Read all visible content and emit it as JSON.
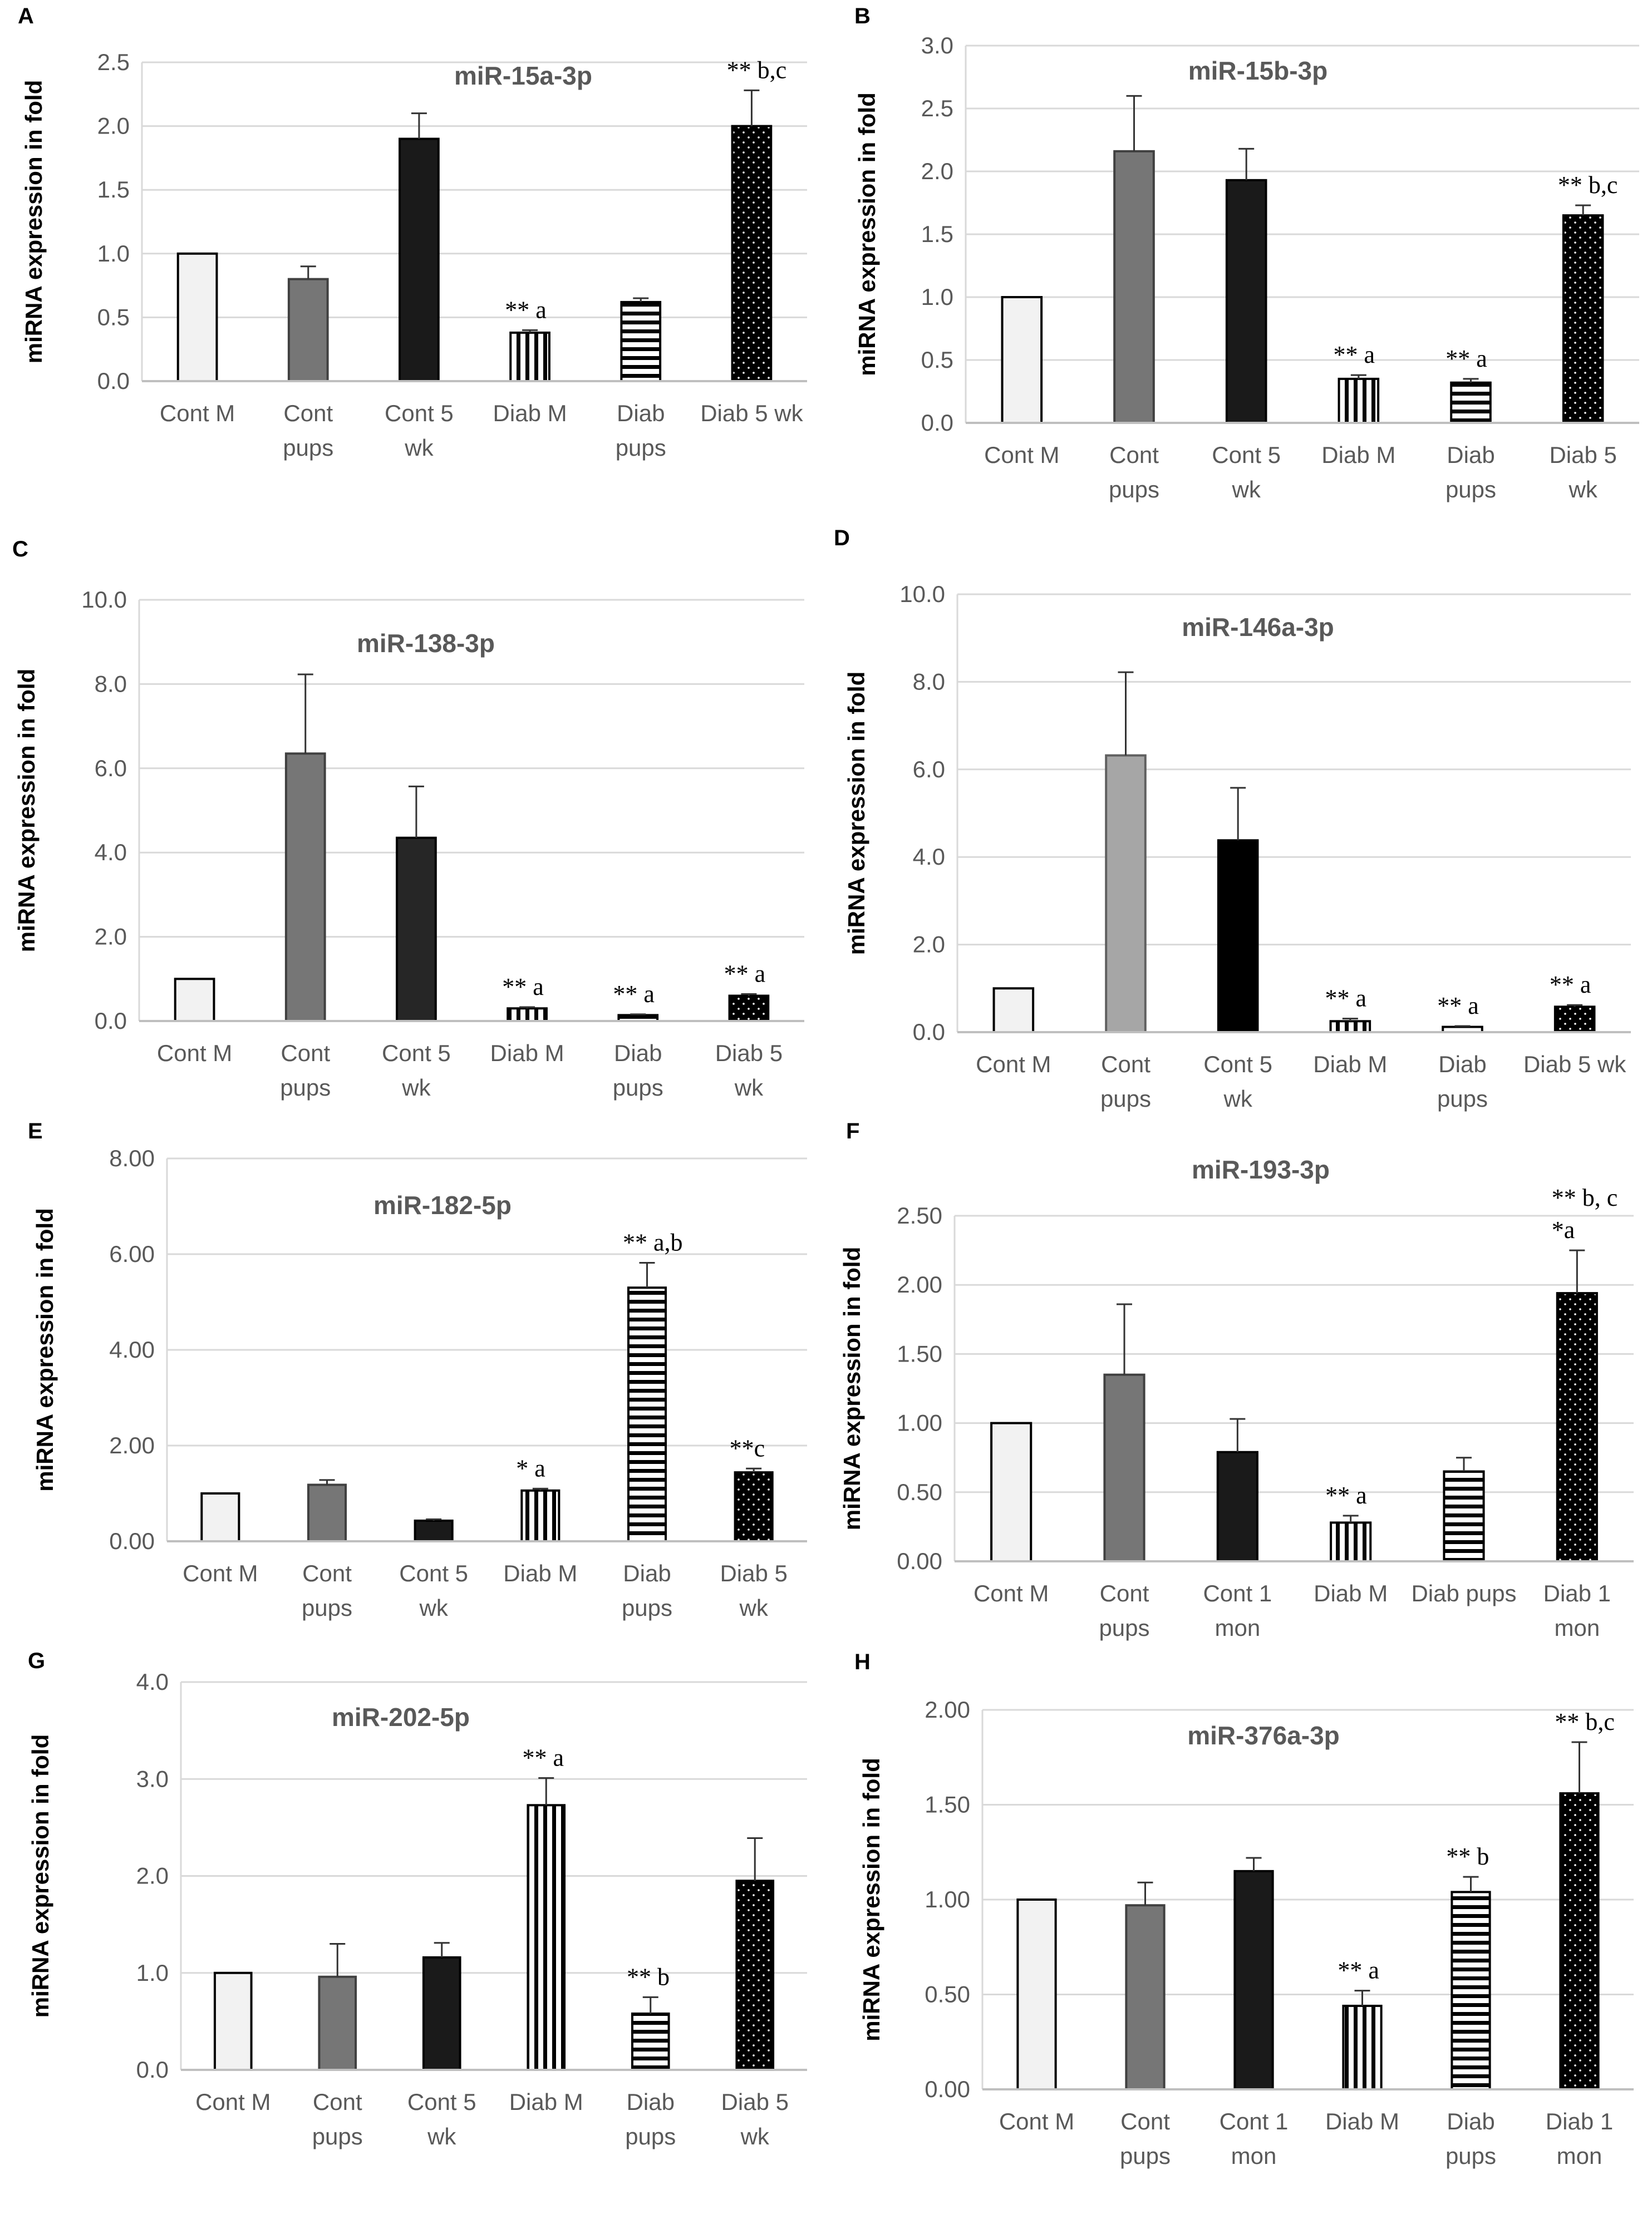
{
  "figure": {
    "panels": [
      {
        "letter": "A",
        "title": "miR-15a-3p",
        "ylabel": "miRNA expression in fold",
        "ylim": [
          0,
          2.5
        ],
        "yticks": [
          "0.0",
          "0.5",
          "1.0",
          "1.5",
          "2.0",
          "2.5"
        ],
        "categories": [
          [
            "Cont M"
          ],
          [
            "Cont",
            "pups"
          ],
          [
            "Cont 5",
            "wk"
          ],
          [
            "Diab M"
          ],
          [
            "Diab",
            "pups"
          ],
          [
            "Diab 5 wk"
          ]
        ],
        "values": [
          1.0,
          0.8,
          1.9,
          0.38,
          0.62,
          2.0
        ],
        "errors": [
          0.0,
          0.1,
          0.2,
          0.02,
          0.03,
          0.28
        ],
        "annotations": [
          [],
          [],
          [],
          [
            "** a"
          ],
          [],
          [
            "** b,c"
          ]
        ]
      },
      {
        "letter": "B",
        "title": "miR-15b-3p",
        "ylabel": "miRNA expression in fold",
        "ylim": [
          0,
          3.0
        ],
        "yticks": [
          "0.0",
          "0.5",
          "1.0",
          "1.5",
          "2.0",
          "2.5",
          "3.0"
        ],
        "categories": [
          [
            "Cont M"
          ],
          [
            "Cont",
            "pups"
          ],
          [
            "Cont 5",
            "wk"
          ],
          [
            "Diab M"
          ],
          [
            "Diab",
            "pups"
          ],
          [
            "Diab 5",
            "wk"
          ]
        ],
        "values": [
          1.0,
          2.16,
          1.93,
          0.35,
          0.32,
          1.65
        ],
        "errors": [
          0.0,
          0.44,
          0.25,
          0.03,
          0.03,
          0.08
        ],
        "annotations": [
          [],
          [],
          [],
          [
            "** a"
          ],
          [
            "** a"
          ],
          [
            "** b,c"
          ]
        ]
      },
      {
        "letter": "C",
        "title": "miR-138-3p",
        "ylabel": "miRNA expression in fold",
        "ylim": [
          0,
          10.0
        ],
        "yticks": [
          "0.0",
          "2.0",
          "4.0",
          "6.0",
          "8.0",
          "10.0"
        ],
        "categories": [
          [
            "Cont M"
          ],
          [
            "Cont",
            "pups"
          ],
          [
            "Cont 5",
            "wk"
          ],
          [
            "Diab M"
          ],
          [
            "Diab",
            "pups"
          ],
          [
            "Diab 5",
            "wk"
          ]
        ],
        "values": [
          1.0,
          6.35,
          4.35,
          0.3,
          0.14,
          0.6
        ],
        "errors": [
          0.0,
          1.88,
          1.22,
          0.03,
          0.02,
          0.04
        ],
        "annotations": [
          [],
          [],
          [],
          [
            "** a"
          ],
          [
            "** a"
          ],
          [
            "** a"
          ]
        ]
      },
      {
        "letter": "D",
        "title": "miR-146a-3p",
        "ylabel": "miRNA expression in fold",
        "ylim": [
          0,
          10.0
        ],
        "yticks": [
          "0.0",
          "2.0",
          "4.0",
          "6.0",
          "8.0",
          "10.0"
        ],
        "categories": [
          [
            "Cont M"
          ],
          [
            "Cont",
            "pups"
          ],
          [
            "Cont 5",
            "wk"
          ],
          [
            "Diab M"
          ],
          [
            "Diab",
            "pups"
          ],
          [
            "Diab 5 wk"
          ]
        ],
        "values": [
          1.0,
          6.32,
          4.38,
          0.25,
          0.12,
          0.58
        ],
        "errors": [
          0.0,
          1.9,
          1.2,
          0.06,
          0.02,
          0.04
        ],
        "annotations": [
          [],
          [],
          [],
          [
            "** a"
          ],
          [
            "** a"
          ],
          [
            "** a"
          ]
        ]
      },
      {
        "letter": "E",
        "title": "miR-182-5p",
        "ylabel": "miRNA expression in fold",
        "ylim": [
          0,
          8.0
        ],
        "yticks": [
          "0.00",
          "2.00",
          "4.00",
          "6.00",
          "8.00"
        ],
        "categories": [
          [
            "Cont M"
          ],
          [
            "Cont",
            "pups"
          ],
          [
            "Cont 5",
            "wk"
          ],
          [
            "Diab M"
          ],
          [
            "Diab",
            "pups"
          ],
          [
            "Diab 5",
            "wk"
          ]
        ],
        "values": [
          1.0,
          1.18,
          0.43,
          1.06,
          5.3,
          1.44
        ],
        "errors": [
          0.0,
          0.1,
          0.03,
          0.04,
          0.52,
          0.08
        ],
        "annotations": [
          [],
          [],
          [],
          [
            "* a"
          ],
          [
            "** a,b"
          ],
          [
            "**c"
          ]
        ]
      },
      {
        "letter": "F",
        "title": "miR-193-3p",
        "ylabel": "miRNA expression in fold",
        "ylim": [
          0,
          2.5
        ],
        "yticks": [
          "0.00",
          "0.50",
          "1.00",
          "1.50",
          "2.00",
          "2.50"
        ],
        "categories": [
          [
            "Cont M"
          ],
          [
            "Cont",
            "pups"
          ],
          [
            "Cont 1",
            "mon"
          ],
          [
            "Diab M"
          ],
          [
            "Diab pups"
          ],
          [
            "Diab 1",
            "mon"
          ]
        ],
        "values": [
          1.0,
          1.35,
          0.79,
          0.28,
          0.65,
          1.94
        ],
        "errors": [
          0.0,
          0.51,
          0.24,
          0.05,
          0.1,
          0.31
        ],
        "annotations": [
          [],
          [],
          [],
          [
            "** a"
          ],
          [],
          [
            "*a",
            "** b, c"
          ]
        ]
      },
      {
        "letter": "G",
        "title": "miR-202-5p",
        "ylabel": "miRNA expression in fold",
        "ylim": [
          0,
          4.0
        ],
        "yticks": [
          "0.0",
          "1.0",
          "2.0",
          "3.0",
          "4.0"
        ],
        "categories": [
          [
            "Cont M"
          ],
          [
            "Cont",
            "pups"
          ],
          [
            "Cont 5",
            "wk"
          ],
          [
            "Diab M"
          ],
          [
            "Diab",
            "pups"
          ],
          [
            "Diab 5",
            "wk"
          ]
        ],
        "values": [
          1.0,
          0.96,
          1.16,
          2.73,
          0.58,
          1.95
        ],
        "errors": [
          0.0,
          0.34,
          0.15,
          0.28,
          0.17,
          0.44
        ],
        "annotations": [
          [],
          [],
          [],
          [
            "** a"
          ],
          [
            "** b"
          ],
          []
        ]
      },
      {
        "letter": "H",
        "title": "miR-376a-3p",
        "ylabel": "miRNA expression in fold",
        "ylim": [
          0,
          2.0
        ],
        "yticks": [
          "0.00",
          "0.50",
          "1.00",
          "1.50",
          "2.00"
        ],
        "categories": [
          [
            "Cont M"
          ],
          [
            "Cont",
            "pups"
          ],
          [
            "Cont 1",
            "mon"
          ],
          [
            "Diab M"
          ],
          [
            "Diab",
            "pups"
          ],
          [
            "Diab 1",
            "mon"
          ]
        ],
        "values": [
          1.0,
          0.97,
          1.15,
          0.44,
          1.04,
          1.56
        ],
        "errors": [
          0.0,
          0.12,
          0.07,
          0.08,
          0.08,
          0.27
        ],
        "annotations": [
          [],
          [],
          [],
          [
            "** a"
          ],
          [
            "** b"
          ],
          [
            "** b,c"
          ]
        ]
      }
    ]
  },
  "chart_data": [
    {
      "type": "bar",
      "title": "miR-15a-3p",
      "xlabel": "",
      "ylabel": "miRNA expression in fold",
      "ylim": [
        0,
        2.5
      ],
      "grid": true,
      "categories": [
        "Cont M",
        "Cont pups",
        "Cont 5 wk",
        "Diab M",
        "Diab pups",
        "Diab 5 wk"
      ],
      "values": [
        1.0,
        0.8,
        1.9,
        0.38,
        0.62,
        2.0
      ],
      "errors": [
        0.0,
        0.1,
        0.2,
        0.02,
        0.03,
        0.28
      ]
    },
    {
      "type": "bar",
      "title": "miR-15b-3p",
      "xlabel": "",
      "ylabel": "miRNA expression in fold",
      "ylim": [
        0,
        3.0
      ],
      "grid": true,
      "categories": [
        "Cont M",
        "Cont pups",
        "Cont 5 wk",
        "Diab M",
        "Diab pups",
        "Diab 5 wk"
      ],
      "values": [
        1.0,
        2.16,
        1.93,
        0.35,
        0.32,
        1.65
      ],
      "errors": [
        0.0,
        0.44,
        0.25,
        0.03,
        0.03,
        0.08
      ]
    },
    {
      "type": "bar",
      "title": "miR-138-3p",
      "xlabel": "",
      "ylabel": "miRNA expression in fold",
      "ylim": [
        0,
        10.0
      ],
      "grid": true,
      "categories": [
        "Cont M",
        "Cont pups",
        "Cont 5 wk",
        "Diab M",
        "Diab pups",
        "Diab 5 wk"
      ],
      "values": [
        1.0,
        6.35,
        4.35,
        0.3,
        0.14,
        0.6
      ],
      "errors": [
        0.0,
        1.88,
        1.22,
        0.03,
        0.02,
        0.04
      ]
    },
    {
      "type": "bar",
      "title": "miR-146a-3p",
      "xlabel": "",
      "ylabel": "miRNA expression in fold",
      "ylim": [
        0,
        10.0
      ],
      "grid": true,
      "categories": [
        "Cont M",
        "Cont pups",
        "Cont 5 wk",
        "Diab M",
        "Diab pups",
        "Diab 5 wk"
      ],
      "values": [
        1.0,
        6.32,
        4.38,
        0.25,
        0.12,
        0.58
      ],
      "errors": [
        0.0,
        1.9,
        1.2,
        0.06,
        0.02,
        0.04
      ]
    },
    {
      "type": "bar",
      "title": "miR-182-5p",
      "xlabel": "",
      "ylabel": "miRNA expression in fold",
      "ylim": [
        0,
        8.0
      ],
      "grid": true,
      "categories": [
        "Cont M",
        "Cont pups",
        "Cont 5 wk",
        "Diab M",
        "Diab pups",
        "Diab 5 wk"
      ],
      "values": [
        1.0,
        1.18,
        0.43,
        1.06,
        5.3,
        1.44
      ],
      "errors": [
        0.0,
        0.1,
        0.03,
        0.04,
        0.52,
        0.08
      ]
    },
    {
      "type": "bar",
      "title": "miR-193-3p",
      "xlabel": "",
      "ylabel": "miRNA expression in fold",
      "ylim": [
        0,
        2.5
      ],
      "grid": true,
      "categories": [
        "Cont M",
        "Cont pups",
        "Cont 1 mon",
        "Diab M",
        "Diab pups",
        "Diab 1 mon"
      ],
      "values": [
        1.0,
        1.35,
        0.79,
        0.28,
        0.65,
        1.94
      ],
      "errors": [
        0.0,
        0.51,
        0.24,
        0.05,
        0.1,
        0.31
      ]
    },
    {
      "type": "bar",
      "title": "miR-202-5p",
      "xlabel": "",
      "ylabel": "miRNA expression in fold",
      "ylim": [
        0,
        4.0
      ],
      "grid": true,
      "categories": [
        "Cont M",
        "Cont pups",
        "Cont 5 wk",
        "Diab M",
        "Diab pups",
        "Diab 5 wk"
      ],
      "values": [
        1.0,
        0.96,
        1.16,
        2.73,
        0.58,
        1.95
      ],
      "errors": [
        0.0,
        0.34,
        0.15,
        0.28,
        0.17,
        0.44
      ]
    },
    {
      "type": "bar",
      "title": "miR-376a-3p",
      "xlabel": "",
      "ylabel": "miRNA expression in fold",
      "ylim": [
        0,
        2.0
      ],
      "grid": true,
      "categories": [
        "Cont M",
        "Cont pups",
        "Cont 1 mon",
        "Diab M",
        "Diab pups",
        "Diab 1 mon"
      ],
      "values": [
        1.0,
        0.97,
        1.15,
        0.44,
        1.04,
        1.56
      ],
      "errors": [
        0.0,
        0.12,
        0.07,
        0.08,
        0.08,
        0.27
      ]
    }
  ]
}
